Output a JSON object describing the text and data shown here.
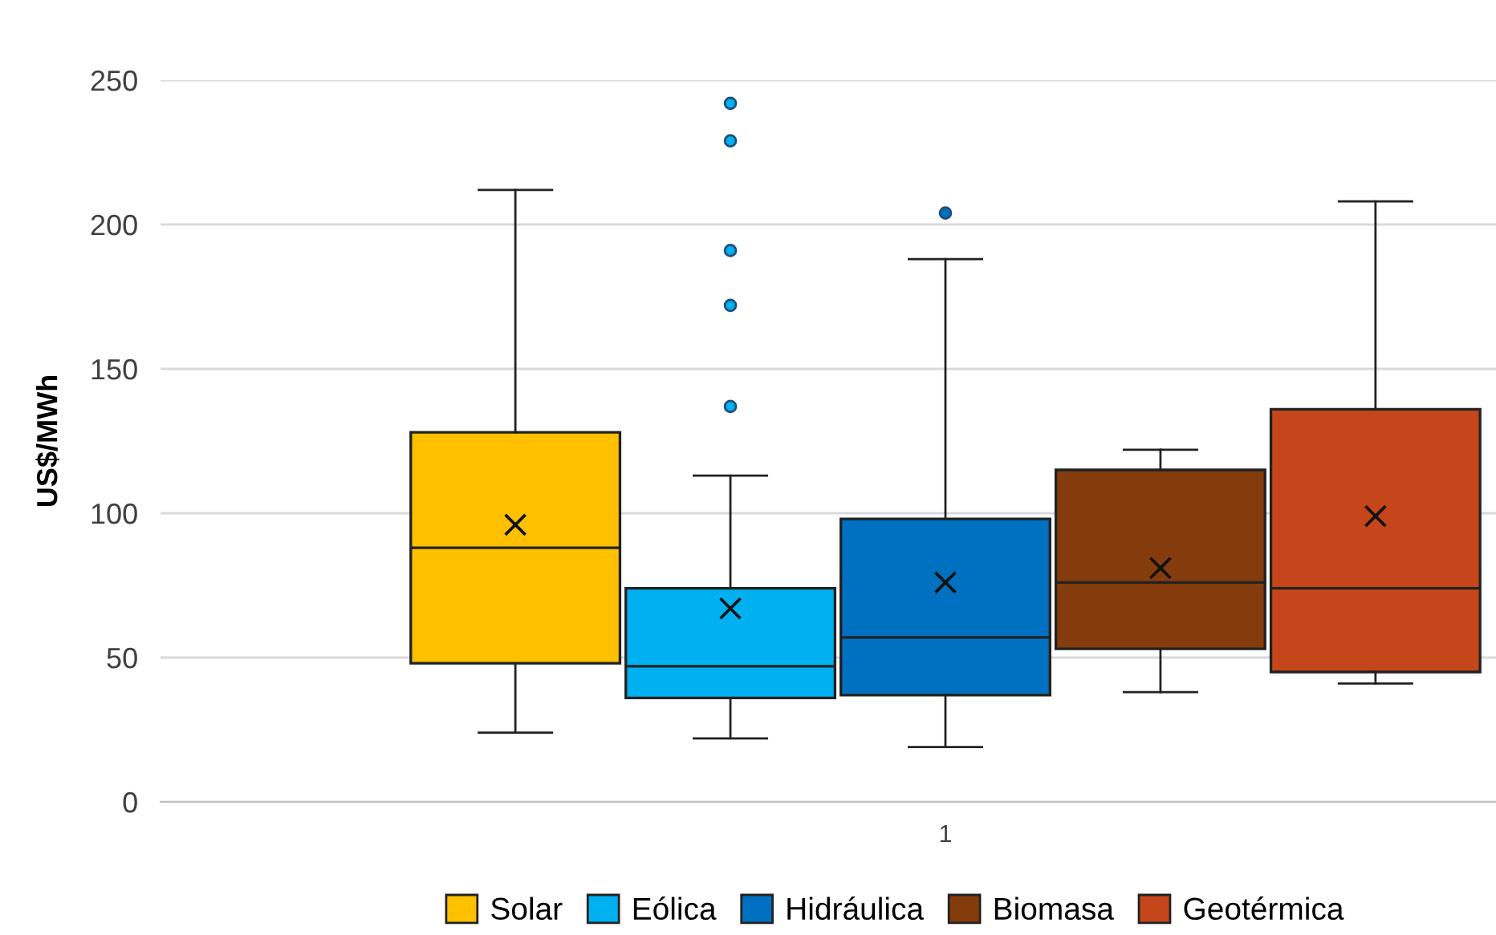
{
  "chart_data": {
    "type": "box",
    "ylabel": "US$/MWh",
    "categories": [
      "1"
    ],
    "ylim": [
      0,
      250
    ],
    "yticks": [
      0,
      50,
      100,
      150,
      200,
      250
    ],
    "grid": "y",
    "legend": "bottom",
    "series": [
      {
        "name": "Solar",
        "color": "#ffc000",
        "boxes": [
          {
            "low": 24,
            "q1": 48,
            "median": 88,
            "q3": 128,
            "high": 212,
            "mean": 96
          }
        ]
      },
      {
        "name": "Eólica",
        "color": "#00b0f0",
        "boxes": [
          {
            "low": 22,
            "q1": 36,
            "median": 47,
            "q3": 74,
            "high": 113,
            "mean": 67,
            "outliers": [
              137,
              172,
              191,
              229,
              242
            ]
          }
        ]
      },
      {
        "name": "Hidráulica",
        "color": "#0070c0",
        "boxes": [
          {
            "low": 19,
            "q1": 37,
            "median": 57,
            "q3": 98,
            "high": 188,
            "mean": 76,
            "outliers": [
              204
            ]
          }
        ]
      },
      {
        "name": "Biomasa",
        "color": "#843c0c",
        "boxes": [
          {
            "low": 38,
            "q1": 53,
            "median": 76,
            "q3": 115,
            "high": 122,
            "mean": 81
          }
        ]
      },
      {
        "name": "Geotérmica",
        "color": "#c5461a",
        "boxes": [
          {
            "low": 41,
            "q1": 45,
            "median": 74,
            "q3": 136,
            "high": 208,
            "mean": 99
          }
        ]
      }
    ]
  }
}
